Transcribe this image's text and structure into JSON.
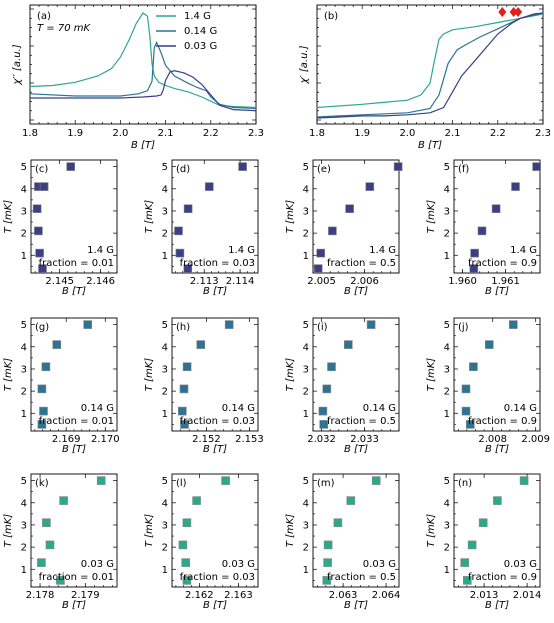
{
  "colors": {
    "g14": "#3a3f86",
    "g014": "#2b7493",
    "g003": "#2aa98b",
    "arrow": "#e0201a"
  },
  "chart_data": [
    {
      "type": "line",
      "label": "(a)",
      "annotation": "T = 70 mK",
      "xlabel": "B [T]",
      "ylabel": "χ′′ [a.u.]",
      "xlim": [
        1.8,
        2.3
      ],
      "ylim": [
        0,
        1
      ],
      "xticks": [
        "1.8",
        "1.9",
        "2.0",
        "2.1",
        "2.2",
        "2.3"
      ],
      "legend": [
        "1.4 G",
        "0.14 G",
        "0.03 G"
      ],
      "series": [
        {
          "name": "1.4 G",
          "color": "#2aa98b",
          "x": [
            1.8,
            1.85,
            1.9,
            1.95,
            1.98,
            2.0,
            2.02,
            2.035,
            2.05,
            2.06,
            2.065,
            2.07,
            2.075,
            2.085,
            2.1,
            2.12,
            2.15,
            2.18,
            2.2,
            2.22,
            2.25,
            2.3
          ],
          "y": [
            0.3,
            0.31,
            0.34,
            0.4,
            0.47,
            0.58,
            0.75,
            0.9,
            1.0,
            0.97,
            0.78,
            0.52,
            0.4,
            0.34,
            0.31,
            0.28,
            0.25,
            0.2,
            0.16,
            0.12,
            0.11,
            0.1
          ]
        },
        {
          "name": "0.14 G",
          "color": "#2b7493",
          "x": [
            1.8,
            1.9,
            1.95,
            2.0,
            2.04,
            2.06,
            2.07,
            2.075,
            2.08,
            2.09,
            2.1,
            2.12,
            2.15,
            2.17,
            2.19,
            2.2,
            2.22,
            2.25,
            2.3
          ],
          "y": [
            0.23,
            0.21,
            0.21,
            0.21,
            0.23,
            0.26,
            0.35,
            0.67,
            0.72,
            0.62,
            0.5,
            0.4,
            0.33,
            0.29,
            0.26,
            0.2,
            0.13,
            0.1,
            0.09
          ]
        },
        {
          "name": "0.03 G",
          "color": "#3a3f86",
          "x": [
            1.8,
            1.9,
            2.0,
            2.05,
            2.08,
            2.09,
            2.095,
            2.1,
            2.11,
            2.12,
            2.14,
            2.16,
            2.18,
            2.2,
            2.22,
            2.25,
            2.3
          ],
          "y": [
            0.19,
            0.19,
            0.19,
            0.2,
            0.21,
            0.22,
            0.27,
            0.36,
            0.44,
            0.45,
            0.43,
            0.39,
            0.32,
            0.22,
            0.12,
            0.08,
            0.07
          ]
        }
      ]
    },
    {
      "type": "line",
      "label": "(b)",
      "xlabel": "B [T]",
      "ylabel": "χ′ [a.u.]",
      "xlim": [
        1.8,
        2.3
      ],
      "ylim": [
        0,
        1
      ],
      "xticks": [
        "1.8",
        "1.9",
        "2.0",
        "2.1",
        "2.2",
        "2.3"
      ],
      "series": [
        {
          "name": "1.4 G",
          "color": "#2aa98b",
          "x": [
            1.8,
            1.9,
            2.0,
            2.03,
            2.05,
            2.06,
            2.07,
            2.08,
            2.1,
            2.15,
            2.2,
            2.25,
            2.3
          ],
          "y": [
            0.1,
            0.13,
            0.17,
            0.22,
            0.33,
            0.55,
            0.75,
            0.8,
            0.84,
            0.87,
            0.91,
            0.95,
            0.99
          ]
        },
        {
          "name": "0.14 G",
          "color": "#2b7493",
          "x": [
            1.8,
            1.85,
            1.9,
            1.95,
            2.0,
            2.05,
            2.07,
            2.09,
            2.11,
            2.13,
            2.16,
            2.2,
            2.25,
            2.3
          ],
          "y": [
            0.01,
            0.02,
            0.03,
            0.04,
            0.05,
            0.09,
            0.22,
            0.52,
            0.65,
            0.7,
            0.77,
            0.85,
            0.95,
            1.0
          ]
        },
        {
          "name": "0.03 G",
          "color": "#3a3f86",
          "x": [
            1.8,
            1.85,
            1.9,
            1.95,
            2.0,
            2.05,
            2.08,
            2.1,
            2.12,
            2.15,
            2.18,
            2.2,
            2.23,
            2.25,
            2.28,
            2.3
          ],
          "y": [
            0.0,
            0.01,
            0.02,
            0.02,
            0.03,
            0.05,
            0.1,
            0.25,
            0.4,
            0.55,
            0.7,
            0.8,
            0.9,
            0.95,
            0.99,
            1.0
          ]
        }
      ],
      "markers": [
        {
          "x": 2.21,
          "y": 0.975
        },
        {
          "x": 2.235,
          "y": 0.975
        },
        {
          "x": 2.245,
          "y": 0.975
        }
      ]
    },
    {
      "type": "scatter",
      "label": "(c)",
      "field": "1.4 G",
      "fraction": "fraction = 0.01",
      "ylabel": "T [mK]",
      "xlabel": "B [T]",
      "xlim": [
        2.1443,
        2.1464
      ],
      "ylim": [
        0.2,
        5.3
      ],
      "xticks": [
        2.145,
        2.146
      ],
      "xtick_labels": [
        "2.145",
        "2.146"
      ],
      "yticks": [
        1,
        2,
        3,
        4,
        5
      ],
      "color": "#3a3f86",
      "x": [
        2.14458,
        2.14451,
        2.14448,
        2.14445,
        2.14448,
        2.14462,
        2.14527
      ],
      "y": [
        0.4,
        1.1,
        2.1,
        3.1,
        4.1,
        4.1,
        5.0
      ]
    },
    {
      "type": "scatter",
      "label": "(d)",
      "field": "1.4 G",
      "fraction": "fraction = 0.03",
      "ylabel": "T [mK]",
      "xlabel": "B [T]",
      "xlim": [
        2.1121,
        2.1145
      ],
      "ylim": [
        0.2,
        5.3
      ],
      "xticks": [
        2.113,
        2.114
      ],
      "xtick_labels": [
        "2.113",
        "2.114"
      ],
      "yticks": [
        1,
        2,
        3,
        4,
        5
      ],
      "color": "#3a3f86",
      "x": [
        2.11254,
        2.11232,
        2.11228,
        2.11255,
        2.11314,
        2.11407
      ],
      "y": [
        0.4,
        1.1,
        2.1,
        3.1,
        4.1,
        5.0
      ]
    },
    {
      "type": "scatter",
      "label": "(e)",
      "field": "1.4 G",
      "fraction": "fraction = 0.5",
      "ylabel": "T [mK]",
      "xlabel": "B [T]",
      "xlim": [
        2.0048,
        2.0068
      ],
      "ylim": [
        0.2,
        5.3
      ],
      "xticks": [
        2.005,
        2.006
      ],
      "xtick_labels": [
        "2.005",
        "2.006"
      ],
      "yticks": [
        1,
        2,
        3,
        4,
        5
      ],
      "color": "#3a3f86",
      "x": [
        2.00492,
        2.00498,
        2.00525,
        2.00565,
        2.00612,
        2.00678
      ],
      "y": [
        0.4,
        1.1,
        2.1,
        3.1,
        4.1,
        5.0
      ]
    },
    {
      "type": "scatter",
      "label": "(f)",
      "field": "1.4 G",
      "fraction": "fraction = 0.9",
      "ylabel": "T [mK]",
      "xlabel": "B [T]",
      "xlim": [
        1.9598,
        1.9618
      ],
      "ylim": [
        0.2,
        5.3
      ],
      "xticks": [
        1.96,
        1.961
      ],
      "xtick_labels": [
        "1.960",
        "1.961"
      ],
      "yticks": [
        1,
        2,
        3,
        4,
        5
      ],
      "color": "#3a3f86",
      "x": [
        1.96026,
        1.96028,
        1.96045,
        1.96078,
        1.96123,
        1.96172
      ],
      "y": [
        0.4,
        1.1,
        2.1,
        3.1,
        4.1,
        5.0
      ]
    },
    {
      "type": "scatter",
      "label": "(g)",
      "field": "0.14 G",
      "fraction": "fraction = 0.01",
      "ylabel": "T [mK]",
      "xlabel": "B [T]",
      "xlim": [
        2.1681,
        2.1703
      ],
      "ylim": [
        0.2,
        5.3
      ],
      "xticks": [
        2.169,
        2.17
      ],
      "xtick_labels": [
        "2.169",
        "2.170"
      ],
      "yticks": [
        1,
        2,
        3,
        4,
        5
      ],
      "color": "#2b7493",
      "x": [
        2.16838,
        2.16842,
        2.16838,
        2.16848,
        2.16876,
        2.16955
      ],
      "y": [
        0.5,
        1.1,
        2.1,
        3.1,
        4.1,
        5.0
      ]
    },
    {
      "type": "scatter",
      "label": "(h)",
      "field": "0.14 G",
      "fraction": "fraction = 0.03",
      "ylabel": "T [mK]",
      "xlabel": "B [T]",
      "xlim": [
        2.1512,
        2.1532
      ],
      "ylim": [
        0.2,
        5.3
      ],
      "xticks": [
        2.152,
        2.153
      ],
      "xtick_labels": [
        "2.152",
        "2.153"
      ],
      "yticks": [
        1,
        2,
        3,
        4,
        5
      ],
      "color": "#2b7493",
      "x": [
        2.15149,
        2.15144,
        2.15148,
        2.15155,
        2.15187,
        2.15253
      ],
      "y": [
        0.5,
        1.1,
        2.1,
        3.1,
        4.1,
        5.0
      ]
    },
    {
      "type": "scatter",
      "label": "(i)",
      "field": "0.14 G",
      "fraction": "fraction = 0.5",
      "ylabel": "T [mK]",
      "xlabel": "B [T]",
      "xlim": [
        2.0318,
        2.0338
      ],
      "ylim": [
        0.2,
        5.3
      ],
      "xticks": [
        2.032,
        2.033
      ],
      "xtick_labels": [
        "2.032",
        "2.033"
      ],
      "yticks": [
        1,
        2,
        3,
        4,
        5
      ],
      "color": "#2b7493",
      "x": [
        2.03205,
        2.03203,
        2.03212,
        2.03223,
        2.03262,
        2.03315
      ],
      "y": [
        0.5,
        1.1,
        2.1,
        3.1,
        4.1,
        5.0
      ]
    },
    {
      "type": "scatter",
      "label": "(j)",
      "field": "0.14 G",
      "fraction": "fraction = 0.9",
      "ylabel": "T [mK]",
      "xlabel": "B [T]",
      "xlim": [
        2.0071,
        2.0091
      ],
      "ylim": [
        0.2,
        5.3
      ],
      "xticks": [
        2.008,
        2.009
      ],
      "xtick_labels": [
        "2.008",
        "2.009"
      ],
      "yticks": [
        1,
        2,
        3,
        4,
        5
      ],
      "color": "#2b7493",
      "x": [
        2.00748,
        2.00738,
        2.00738,
        2.00755,
        2.00792,
        2.00848
      ],
      "y": [
        0.5,
        1.1,
        2.1,
        3.1,
        4.1,
        5.0
      ]
    },
    {
      "type": "scatter",
      "label": "(k)",
      "field": "0.03 G",
      "fraction": "fraction = 0.01",
      "ylabel": "T [mK]",
      "xlabel": "B [T]",
      "xlim": [
        2.1778,
        2.1797
      ],
      "ylim": [
        0.2,
        5.3
      ],
      "xticks": [
        2.178,
        2.179
      ],
      "xtick_labels": [
        "2.178",
        "2.179"
      ],
      "yticks": [
        1,
        2,
        3,
        4,
        5
      ],
      "color": "#2aa98b",
      "x": [
        2.17845,
        2.17803,
        2.17822,
        2.17814,
        2.17852,
        2.17935
      ],
      "y": [
        0.5,
        1.3,
        2.1,
        3.1,
        4.1,
        5.0
      ]
    },
    {
      "type": "scatter",
      "label": "(l)",
      "field": "0.03 G",
      "fraction": "fraction = 0.03",
      "ylabel": "T [mK]",
      "xlabel": "B [T]",
      "xlim": [
        2.1613,
        2.1635
      ],
      "ylim": [
        0.2,
        5.3
      ],
      "xticks": [
        2.162,
        2.163
      ],
      "xtick_labels": [
        "2.162",
        "2.163"
      ],
      "yticks": [
        1,
        2,
        3,
        4,
        5
      ],
      "color": "#2aa98b",
      "x": [
        2.16168,
        2.16165,
        2.16158,
        2.16168,
        2.16193,
        2.16267
      ],
      "y": [
        0.5,
        1.3,
        2.1,
        3.1,
        4.1,
        5.0
      ]
    },
    {
      "type": "scatter",
      "label": "(m)",
      "field": "0.03 G",
      "fraction": "fraction = 0.5",
      "ylabel": "T [mK]",
      "xlabel": "B [T]",
      "xlim": [
        2.0623,
        2.0643
      ],
      "ylim": [
        0.2,
        5.3
      ],
      "xticks": [
        2.063,
        2.064
      ],
      "xtick_labels": [
        "2.063",
        "2.064"
      ],
      "yticks": [
        1,
        2,
        3,
        4,
        5
      ],
      "color": "#2aa98b",
      "x": [
        2.06262,
        2.06264,
        2.06265,
        2.06288,
        2.06318,
        2.06377
      ],
      "y": [
        0.5,
        1.3,
        2.1,
        3.1,
        4.1,
        5.0
      ]
    },
    {
      "type": "scatter",
      "label": "(n)",
      "field": "0.03 G",
      "fraction": "fraction = 0.9",
      "ylabel": "T [mK]",
      "xlabel": "B [T]",
      "xlim": [
        2.0123,
        2.0143
      ],
      "ylim": [
        0.2,
        5.3
      ],
      "xticks": [
        2.013,
        2.014
      ],
      "xtick_labels": [
        "2.013",
        "2.014"
      ],
      "yticks": [
        1,
        2,
        3,
        4,
        5
      ],
      "color": "#2aa98b",
      "x": [
        2.01261,
        2.01255,
        2.01272,
        2.01298,
        2.01331,
        2.01393
      ],
      "y": [
        0.5,
        1.3,
        2.1,
        3.1,
        4.1,
        5.0
      ]
    }
  ]
}
